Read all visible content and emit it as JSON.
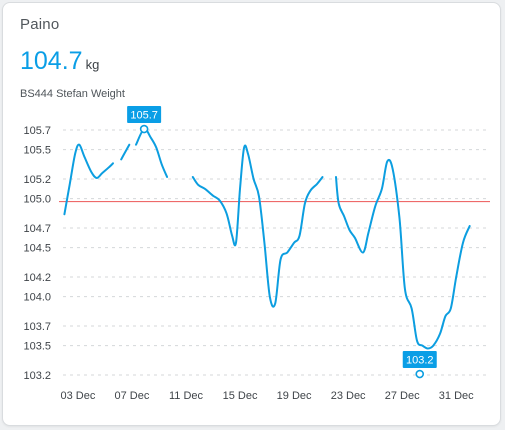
{
  "card": {
    "title": "Paino",
    "value": "104.7",
    "unit": "kg",
    "entity_name": "BS444 Stefan Weight"
  },
  "colors": {
    "line": "#0c9ee0",
    "threshold": "#ee6a6a",
    "label_bg": "#0a9ee6",
    "grid": "#d4d7da"
  },
  "chart_data": {
    "type": "line",
    "title": "",
    "xlabel": "",
    "ylabel": "",
    "x_tick_labels": [
      "03 Dec",
      "07 Dec",
      "11 Dec",
      "15 Dec",
      "19 Dec",
      "23 Dec",
      "27 Dec",
      "31 Dec"
    ],
    "y_tick_labels": [
      "105.7",
      "105.5",
      "105.2",
      "105.0",
      "104.7",
      "104.5",
      "104.2",
      "104.0",
      "103.7",
      "103.5",
      "103.2"
    ],
    "ylim": [
      103.2,
      105.7
    ],
    "xlim_days": [
      1.6,
      33.5
    ],
    "threshold": 104.97,
    "grid": true,
    "annotations": [
      {
        "label": "105.7",
        "x": 7.9,
        "y": 105.71,
        "kind": "max"
      },
      {
        "label": "103.2",
        "x": 28.3,
        "y": 103.21,
        "kind": "min"
      }
    ],
    "series": [
      {
        "segments": [
          [
            [
              2.0,
              104.84
            ],
            [
              2.4,
              105.15
            ],
            [
              2.8,
              105.46
            ],
            [
              3.1,
              105.55
            ],
            [
              3.5,
              105.42
            ],
            [
              4.0,
              105.27
            ],
            [
              4.4,
              105.21
            ],
            [
              4.8,
              105.26
            ],
            [
              5.3,
              105.32
            ],
            [
              5.6,
              105.36
            ]
          ],
          [
            [
              6.2,
              105.4
            ],
            [
              6.8,
              105.55
            ]
          ],
          [
            [
              7.3,
              105.55
            ],
            [
              7.9,
              105.71
            ],
            [
              8.4,
              105.62
            ],
            [
              8.8,
              105.52
            ],
            [
              9.2,
              105.35
            ],
            [
              9.6,
              105.22
            ]
          ],
          [
            [
              11.5,
              105.22
            ],
            [
              11.9,
              105.14
            ],
            [
              12.4,
              105.1
            ],
            [
              13.0,
              105.03
            ],
            [
              13.5,
              104.98
            ],
            [
              14.0,
              104.85
            ],
            [
              14.4,
              104.63
            ],
            [
              14.7,
              104.55
            ],
            [
              15.0,
              105.1
            ],
            [
              15.3,
              105.52
            ],
            [
              15.6,
              105.45
            ],
            [
              16.0,
              105.2
            ],
            [
              16.4,
              105.02
            ],
            [
              16.8,
              104.55
            ],
            [
              17.2,
              104.0
            ],
            [
              17.6,
              103.93
            ],
            [
              18.0,
              104.38
            ],
            [
              18.5,
              104.45
            ],
            [
              19.0,
              104.55
            ],
            [
              19.4,
              104.62
            ],
            [
              19.8,
              104.95
            ],
            [
              20.2,
              105.08
            ],
            [
              20.7,
              105.15
            ],
            [
              21.1,
              105.22
            ]
          ],
          [
            [
              22.1,
              105.22
            ],
            [
              22.3,
              104.95
            ],
            [
              22.7,
              104.82
            ],
            [
              23.1,
              104.68
            ],
            [
              23.5,
              104.6
            ],
            [
              24.1,
              104.45
            ],
            [
              24.5,
              104.65
            ],
            [
              25.0,
              104.92
            ],
            [
              25.5,
              105.1
            ],
            [
              25.9,
              105.38
            ],
            [
              26.3,
              105.3
            ],
            [
              26.8,
              104.8
            ],
            [
              27.2,
              104.08
            ],
            [
              27.7,
              103.88
            ],
            [
              28.1,
              103.55
            ],
            [
              28.5,
              103.5
            ],
            [
              28.9,
              103.47
            ],
            [
              29.3,
              103.5
            ],
            [
              29.8,
              103.62
            ],
            [
              30.2,
              103.8
            ],
            [
              30.6,
              103.88
            ],
            [
              31.0,
              104.2
            ],
            [
              31.5,
              104.55
            ],
            [
              32.0,
              104.72
            ]
          ]
        ]
      }
    ]
  }
}
